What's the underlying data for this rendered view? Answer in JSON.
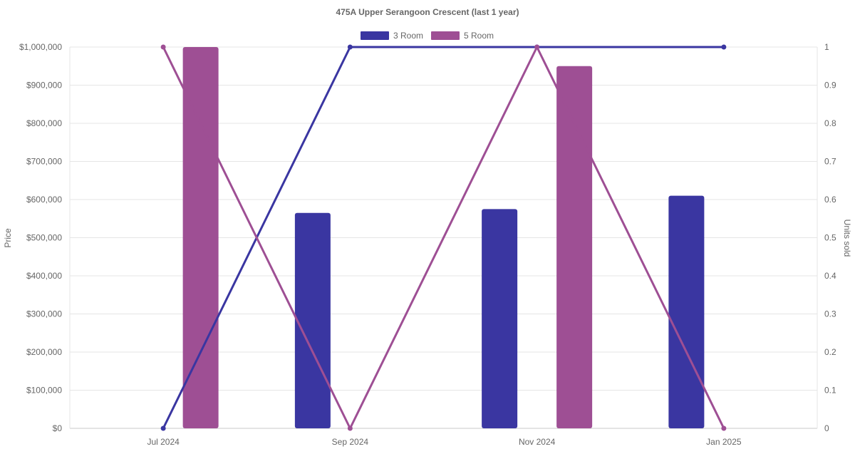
{
  "chart_data": {
    "type": "bar",
    "title": "475A Upper Serangoon Crescent (last 1 year)",
    "categories": [
      "Jul 2024",
      "Sep 2024",
      "Nov 2024",
      "Jan 2025"
    ],
    "y_left": {
      "label": "Price",
      "range": [
        0,
        1000000
      ],
      "ticks": [
        "$0",
        "$100,000",
        "$200,000",
        "$300,000",
        "$400,000",
        "$500,000",
        "$600,000",
        "$700,000",
        "$800,000",
        "$900,000",
        "$1,000,000"
      ]
    },
    "y_right": {
      "label": "Units sold",
      "range": [
        0,
        1
      ],
      "ticks": [
        "0",
        "0.1",
        "0.2",
        "0.3",
        "0.4",
        "0.5",
        "0.6",
        "0.7",
        "0.8",
        "0.9",
        "1"
      ]
    },
    "series": [
      {
        "name": "3 Room",
        "color": "#3a36a1",
        "price_values": [
          null,
          565000,
          575000,
          610000
        ],
        "units_sold": [
          0,
          1,
          1,
          1
        ]
      },
      {
        "name": "5 Room",
        "color": "#9e4f94",
        "price_values": [
          1000000,
          null,
          950000,
          null
        ],
        "units_sold": [
          1,
          0,
          1,
          0
        ]
      }
    ],
    "legend_position": "top",
    "grid": true
  }
}
